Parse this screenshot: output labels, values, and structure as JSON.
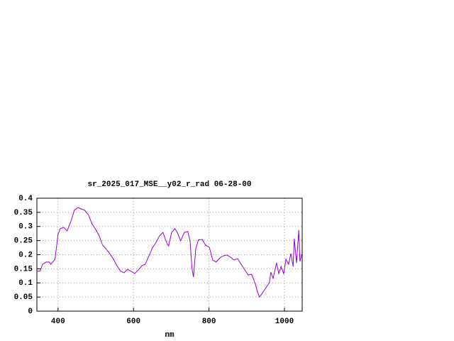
{
  "chart_data": {
    "type": "line",
    "title": "sr_2025_017_MSE__y02_r_rad 06-28-00",
    "x_label": "nm",
    "x": [
      344,
      353,
      359,
      368,
      377,
      381,
      389,
      392,
      400,
      406,
      415,
      424,
      434,
      443,
      453,
      462,
      471,
      481,
      490,
      500,
      509,
      518,
      528,
      537,
      547,
      556,
      566,
      575,
      584,
      594,
      603,
      613,
      622,
      631,
      641,
      650,
      660,
      669,
      678,
      688,
      693,
      701,
      710,
      716,
      725,
      735,
      744,
      750,
      755,
      759,
      765,
      772,
      782,
      791,
      801,
      810,
      819,
      829,
      838,
      848,
      857,
      866,
      876,
      885,
      895,
      904,
      913,
      923,
      928,
      934,
      942,
      951,
      960,
      964,
      970,
      979,
      985,
      991,
      998,
      1004,
      1011,
      1017,
      1023,
      1026,
      1032,
      1038,
      1041,
      1047
    ],
    "values": [
      0.141,
      0.143,
      0.166,
      0.174,
      0.174,
      0.166,
      0.179,
      0.184,
      0.272,
      0.292,
      0.297,
      0.284,
      0.317,
      0.357,
      0.367,
      0.362,
      0.357,
      0.34,
      0.309,
      0.289,
      0.267,
      0.234,
      0.219,
      0.204,
      0.184,
      0.161,
      0.141,
      0.136,
      0.148,
      0.141,
      0.133,
      0.146,
      0.161,
      0.166,
      0.196,
      0.224,
      0.244,
      0.267,
      0.279,
      0.242,
      0.231,
      0.279,
      0.292,
      0.279,
      0.249,
      0.279,
      0.282,
      0.247,
      0.151,
      0.121,
      0.221,
      0.252,
      0.254,
      0.234,
      0.226,
      0.181,
      0.174,
      0.189,
      0.196,
      0.199,
      0.191,
      0.181,
      0.186,
      0.166,
      0.146,
      0.128,
      0.131,
      0.096,
      0.07,
      0.05,
      0.065,
      0.083,
      0.101,
      0.138,
      0.116,
      0.171,
      0.133,
      0.158,
      0.133,
      0.184,
      0.166,
      0.204,
      0.158,
      0.257,
      0.171,
      0.287,
      0.176,
      0.206
    ],
    "color": "#9400d3",
    "xlim": [
      344,
      1047
    ],
    "xticks": [
      400,
      600,
      800,
      1000
    ],
    "ylim": [
      0,
      0.4
    ],
    "yticks": [
      0,
      0.05,
      0.1,
      0.15,
      0.2,
      0.25,
      0.3,
      0.35,
      0.4
    ],
    "grid": true
  }
}
